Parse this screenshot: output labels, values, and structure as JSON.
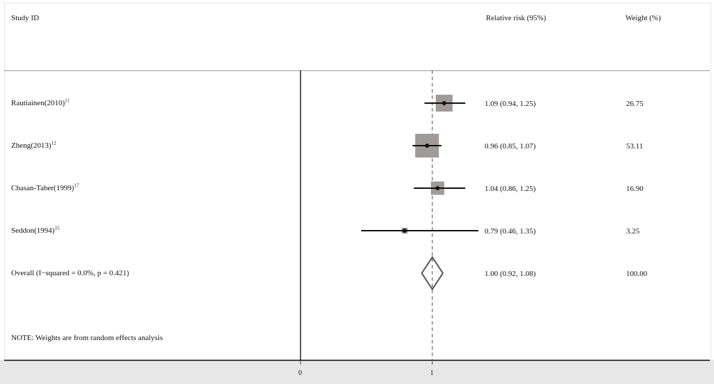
{
  "headers": {
    "study": "Study ID",
    "rr": "Relative risk (95%)",
    "weight": "Weight (%)"
  },
  "studies": [
    {
      "name": "Rautiainen(2010)",
      "ref": "11",
      "rr_text": "1.09 (0.94, 1.25)",
      "weight_text": "26.75"
    },
    {
      "name": "Zheng(2013)",
      "ref": "12",
      "rr_text": "0.96 (0.85, 1.07)",
      "weight_text": "53.11"
    },
    {
      "name": "Chasan-Taber(1999)",
      "ref": "17",
      "rr_text": "1.04 (0.86, 1.25)",
      "weight_text": "16.90"
    },
    {
      "name": "Seddon(1994)",
      "ref": "15",
      "rr_text": "0.79 (0.46, 1.35)",
      "weight_text": "3.25"
    }
  ],
  "overall": {
    "label": "Overall  (I−squared = 0.0%, p = 0.421)",
    "rr_text": "1.00 (0.92, 1.08)",
    "weight_text": "100.00"
  },
  "note": "NOTE: Weights are from random effects analysis",
  "axis_ticks": [
    "0",
    "1"
  ],
  "colors": {
    "box": "#a09a9a",
    "line": "#111111",
    "diamond": "#555555",
    "reference_line": "#666666",
    "axis_band": "#e7e7e7"
  },
  "chart_data": {
    "type": "forest",
    "xlabel": "",
    "ylabel": "",
    "measure": "Relative risk",
    "null_line": 1,
    "ticks": [
      0,
      1
    ],
    "studies": [
      {
        "name": "Rautiainen(2010)",
        "rr": 1.09,
        "lower": 0.94,
        "upper": 1.25,
        "weight": 26.75
      },
      {
        "name": "Zheng(2013)",
        "rr": 0.96,
        "lower": 0.85,
        "upper": 1.07,
        "weight": 53.11
      },
      {
        "name": "Chasan-Taber(1999)",
        "rr": 1.04,
        "lower": 0.86,
        "upper": 1.25,
        "weight": 16.9
      },
      {
        "name": "Seddon(1994)",
        "rr": 0.79,
        "lower": 0.46,
        "upper": 1.35,
        "weight": 3.25
      }
    ],
    "overall": {
      "rr": 1.0,
      "lower": 0.92,
      "upper": 1.08,
      "weight": 100.0
    }
  }
}
